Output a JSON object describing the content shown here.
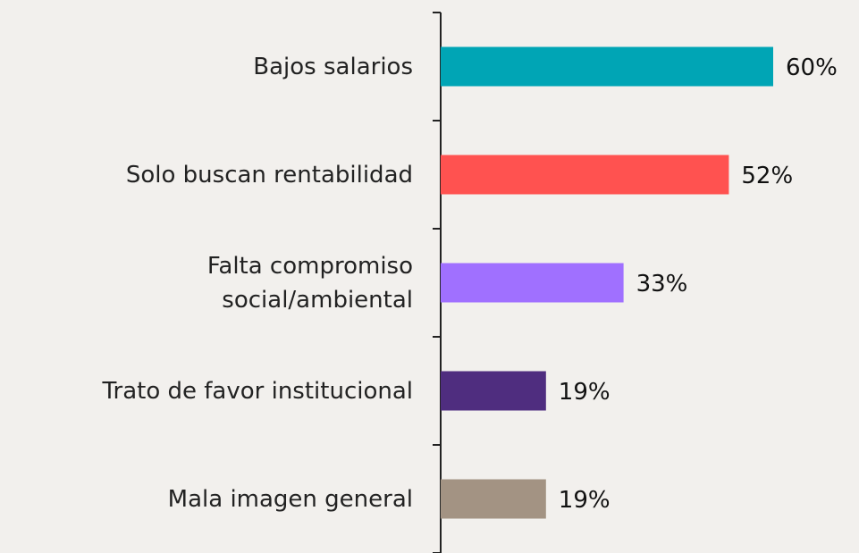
{
  "chart_data": {
    "type": "barh",
    "categories": [
      "Bajos salarios",
      "Solo buscan rentabilidad",
      "Falta compromiso\nsocial/ambiental",
      "Trato de favor institucional",
      "Mala imagen general"
    ],
    "values": [
      60,
      52,
      33,
      19,
      19
    ],
    "value_labels": [
      "60%",
      "52%",
      "33%",
      "19%",
      "19%"
    ],
    "colors": [
      "#00a5b5",
      "#ff5250",
      "#a070ff",
      "#4f2d7f",
      "#a39383"
    ]
  }
}
